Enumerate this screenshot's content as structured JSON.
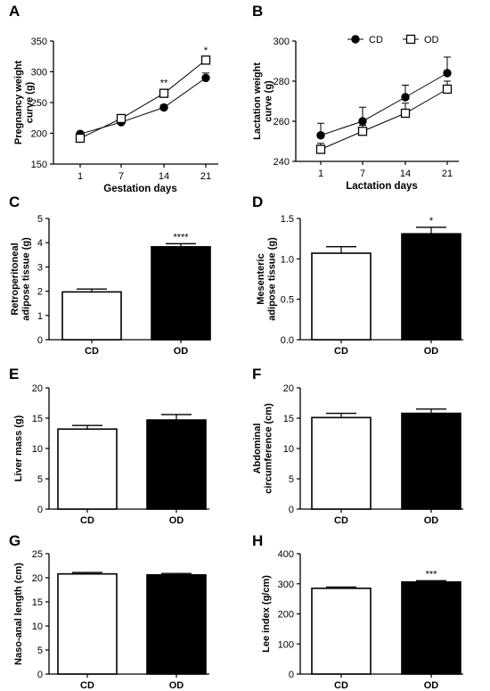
{
  "chart_data": [
    {
      "panel": "A",
      "type": "line",
      "xlabel": "Gestation days",
      "ylabel": "Pregnancy weight curve (g)",
      "categories": [
        "1",
        "7",
        "14",
        "21"
      ],
      "ylim": [
        150,
        350
      ],
      "yticks": [
        150,
        200,
        250,
        300,
        350
      ],
      "series": [
        {
          "name": "CD",
          "marker": "filled-circle",
          "values": [
            199,
            218,
            242,
            290
          ],
          "errors": [
            3,
            3,
            4,
            8
          ]
        },
        {
          "name": "OD",
          "marker": "open-square",
          "values": [
            192,
            224,
            265,
            319
          ],
          "errors": [
            3,
            3,
            6,
            5
          ]
        }
      ],
      "annotations": [
        {
          "category": "14",
          "text": "**"
        },
        {
          "category": "21",
          "text": "*"
        }
      ]
    },
    {
      "panel": "B",
      "type": "line",
      "xlabel": "Lactation days",
      "ylabel": "Lactation weight curve (g)",
      "categories": [
        "1",
        "7",
        "14",
        "21"
      ],
      "ylim": [
        240,
        300
      ],
      "yticks": [
        240,
        260,
        280,
        300
      ],
      "legend": "top",
      "series": [
        {
          "name": "CD",
          "marker": "filled-circle",
          "values": [
            253,
            260,
            272,
            284
          ],
          "errors": [
            6,
            7,
            6,
            8
          ]
        },
        {
          "name": "OD",
          "marker": "open-square",
          "values": [
            246,
            255,
            264,
            276
          ],
          "errors": [
            3,
            3,
            5,
            4
          ]
        }
      ]
    },
    {
      "panel": "C",
      "type": "bar",
      "ylabel": "Retroperitoneal adipose tissue (g)",
      "categories": [
        "CD",
        "OD"
      ],
      "values": [
        1.97,
        3.83
      ],
      "errors": [
        0.12,
        0.13
      ],
      "ylim": [
        0,
        5
      ],
      "yticks": [
        0,
        1,
        2,
        3,
        4,
        5
      ],
      "annotations": [
        {
          "category": "OD",
          "text": "****"
        }
      ]
    },
    {
      "panel": "D",
      "type": "bar",
      "ylabel": "Mesenteric adipose tissue (g)",
      "categories": [
        "CD",
        "OD"
      ],
      "values": [
        1.07,
        1.31
      ],
      "errors": [
        0.08,
        0.08
      ],
      "ylim": [
        0,
        1.5
      ],
      "yticks": [
        "0.0",
        "0.5",
        "1.0",
        "1.5"
      ],
      "annotations": [
        {
          "category": "OD",
          "text": "*"
        }
      ]
    },
    {
      "panel": "E",
      "type": "bar",
      "ylabel": "Liver mass (g)",
      "categories": [
        "CD",
        "OD"
      ],
      "values": [
        13.2,
        14.7
      ],
      "errors": [
        0.6,
        0.9
      ],
      "ylim": [
        0,
        20
      ],
      "yticks": [
        0,
        5,
        10,
        15,
        20
      ]
    },
    {
      "panel": "F",
      "type": "bar",
      "ylabel": "Abdominal circumference (cm)",
      "categories": [
        "CD",
        "OD"
      ],
      "values": [
        15.1,
        15.8
      ],
      "errors": [
        0.7,
        0.7
      ],
      "ylim": [
        0,
        20
      ],
      "yticks": [
        0,
        5,
        10,
        15,
        20
      ]
    },
    {
      "panel": "G",
      "type": "bar",
      "ylabel": "Naso-anal length (cm)",
      "categories": [
        "CD",
        "OD"
      ],
      "values": [
        20.8,
        20.6
      ],
      "errors": [
        0.3,
        0.3
      ],
      "ylim": [
        0,
        25
      ],
      "yticks": [
        0,
        5,
        10,
        15,
        20,
        25
      ]
    },
    {
      "panel": "H",
      "type": "bar",
      "ylabel": "Lee index (g/cm)",
      "categories": [
        "CD",
        "OD"
      ],
      "values": [
        285,
        306
      ],
      "errors": [
        4,
        4
      ],
      "ylim": [
        0,
        400
      ],
      "yticks": [
        0,
        100,
        200,
        300,
        400
      ],
      "annotations": [
        {
          "category": "OD",
          "text": "***"
        }
      ]
    }
  ]
}
